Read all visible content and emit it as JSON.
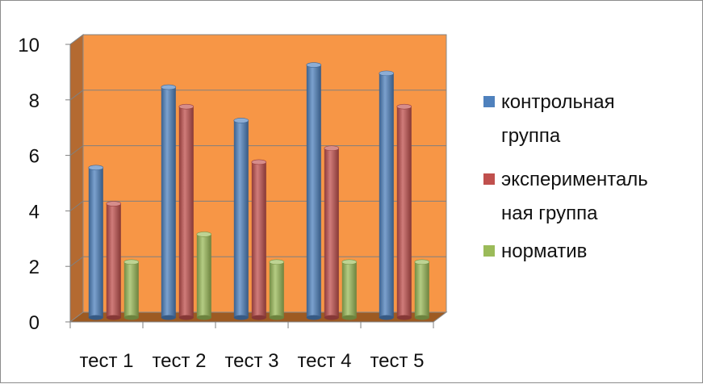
{
  "chart_data": {
    "type": "bar",
    "title": "",
    "xlabel": "",
    "ylabel": "",
    "categories": [
      "тест 1",
      "тест 2",
      "тест 3",
      "тест 4",
      "тест 5"
    ],
    "series": [
      {
        "name": "контрольная группа",
        "values": [
          5.4,
          8.3,
          7.1,
          9.1,
          8.8
        ],
        "color": "#4f81bd"
      },
      {
        "name": "экспериментальная группа",
        "values": [
          4.1,
          7.6,
          5.6,
          6.1,
          7.6
        ],
        "color": "#c0504d"
      },
      {
        "name": "норматив",
        "values": [
          2,
          3,
          2,
          2,
          2
        ],
        "color": "#9bbb59"
      }
    ],
    "ylim": [
      0,
      10
    ],
    "yticks": [
      0,
      2,
      4,
      6,
      8,
      10
    ],
    "grid": true,
    "legend_position": "right",
    "legend_lines": [
      [
        "контрольная",
        "группа"
      ],
      [
        "эксперименталь",
        "ная группа"
      ],
      [
        "норматив"
      ]
    ],
    "colors": {
      "plot_background": "#f79646",
      "side_wall": "#b46a31",
      "floor": "#9d5a22",
      "gridline": "#808080",
      "axis": "#7f7f7f"
    }
  }
}
